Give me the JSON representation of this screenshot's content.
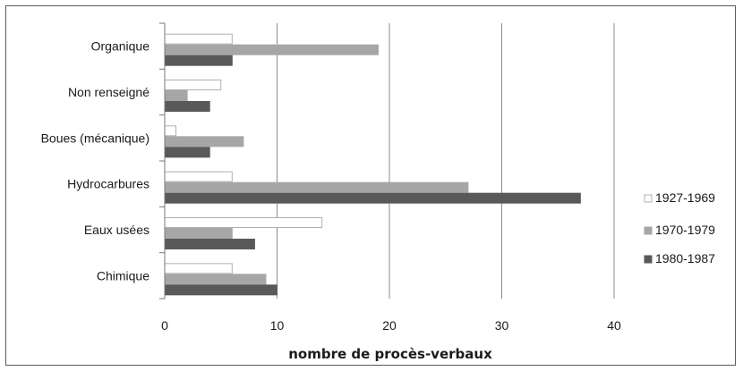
{
  "chart_data": {
    "type": "bar",
    "orientation": "horizontal",
    "categories": [
      "Organique",
      "Non renseigné",
      "Boues (mécanique)",
      "Hydrocarbures",
      "Eaux usées",
      "Chimique"
    ],
    "series": [
      {
        "name": "1927-1969",
        "color": "#ffffff",
        "values": [
          6,
          5,
          1,
          6,
          14,
          6
        ]
      },
      {
        "name": "1970-1979",
        "color": "#a6a6a6",
        "values": [
          19,
          2,
          7,
          27,
          6,
          9
        ]
      },
      {
        "name": "1980-1987",
        "color": "#595959",
        "values": [
          6,
          4,
          4,
          37,
          8,
          10
        ]
      }
    ],
    "xlabel": "nombre de procès-verbaux",
    "ylabel": "",
    "xlim": [
      0,
      40
    ],
    "xticks": [
      0,
      10,
      20,
      30,
      40
    ],
    "grid": "vertical",
    "legend_position": "right"
  }
}
